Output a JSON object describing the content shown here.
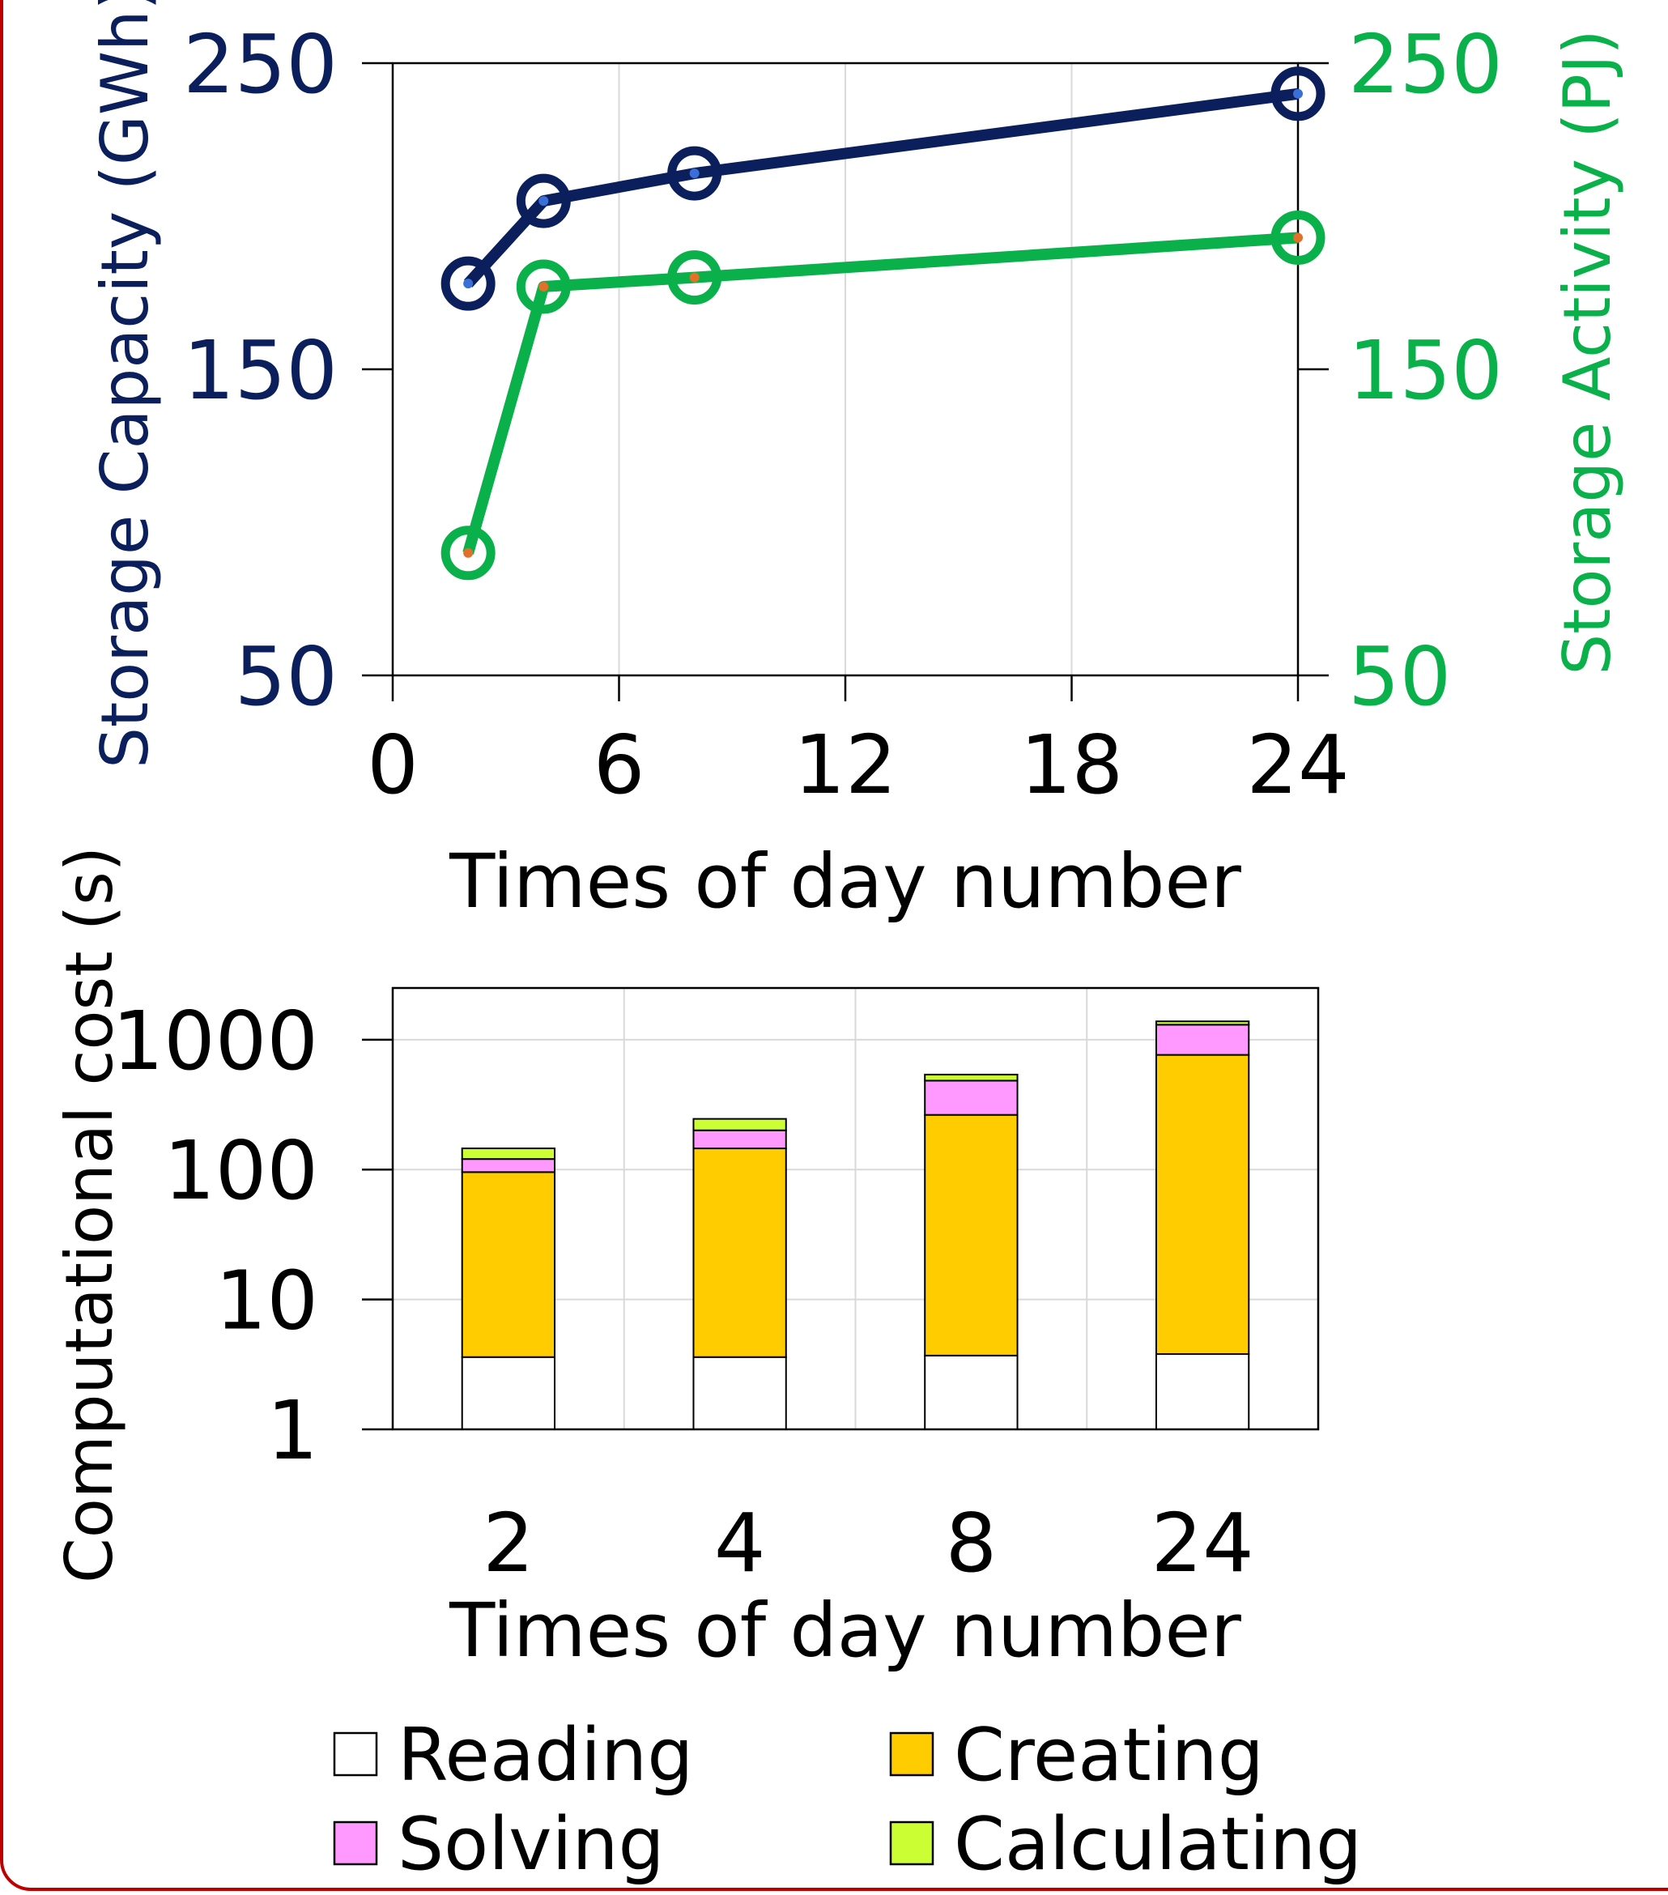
{
  "colors": {
    "capacity": "#0a1f5c",
    "activity": "#0ab04a",
    "capacity_point": "#3a6fd8",
    "activity_point": "#e0702a",
    "reading": "#ffffff",
    "creating": "#ffcc00",
    "solving": "#ff99ff",
    "calculating": "#ccff33"
  },
  "chart_data": [
    {
      "type": "line",
      "xlabel": "Times of day number",
      "ylabel_left": "Storage Capacity (GWh)",
      "ylabel_right": "Storage Activity (PJ)",
      "xlim": [
        0,
        24
      ],
      "x_ticks": [
        "0",
        "6",
        "12",
        "18",
        "24"
      ],
      "ylim_left": [
        50,
        250
      ],
      "ylim_right": [
        50,
        250
      ],
      "y_ticks_left": [
        "50",
        "150",
        "250"
      ],
      "y_ticks_right": [
        "50",
        "150",
        "250"
      ],
      "grid": true,
      "x": [
        2,
        4,
        8,
        24
      ],
      "series": [
        {
          "axis": "left",
          "values": [
            178,
            205,
            214,
            240
          ]
        },
        {
          "axis": "right",
          "values": [
            90,
            177,
            180,
            193
          ]
        }
      ]
    },
    {
      "type": "bar",
      "stacked": true,
      "yscale": "log",
      "xlabel": "Times of day number",
      "ylabel": "Computational cost (s)",
      "categories": [
        "2",
        "4",
        "8",
        "24"
      ],
      "ylim": [
        1,
        2500
      ],
      "y_ticks": [
        "1",
        "10",
        "100",
        "1000"
      ],
      "grid": true,
      "legend_position": "bottom",
      "series": [
        {
          "name": "Reading",
          "values": [
            3.6,
            3.6,
            3.7,
            3.8
          ]
        },
        {
          "name": "Creating",
          "values": [
            92,
            142,
            260,
            760
          ]
        },
        {
          "name": "Solving",
          "values": [
            25,
            55,
            220,
            540
          ]
        },
        {
          "name": "Calculating",
          "values": [
            25,
            45,
            55,
            80
          ]
        }
      ]
    }
  ]
}
